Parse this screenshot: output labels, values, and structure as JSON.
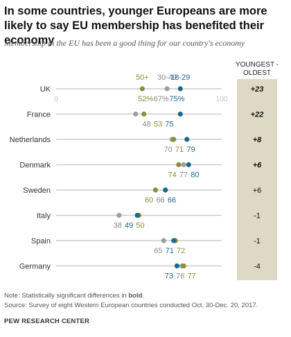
{
  "chart_data": {
    "type": "dot-plot",
    "title": "In some countries, younger Europeans are more likely to say EU membership has benefited their economy",
    "subtitle": "Membership in the EU has been a good thing for our country's economy",
    "xlim": [
      0,
      100
    ],
    "axis_labels": [
      "0",
      "100"
    ],
    "series": [
      {
        "name": "18-29",
        "color": "#1b6a8a",
        "values": [
          75,
          75,
          79,
          80,
          66,
          49,
          71,
          73
        ]
      },
      {
        "name": "30-49",
        "color": "#9e9e9e",
        "values": [
          67,
          48,
          70,
          77,
          66,
          38,
          65,
          76
        ]
      },
      {
        "name": "50+",
        "color": "#8c8c35",
        "values": [
          52,
          53,
          71,
          74,
          60,
          50,
          72,
          77
        ]
      }
    ],
    "rows": [
      {
        "country": "UK",
        "value_labels": [
          "52%",
          "67%",
          "75%"
        ],
        "diff": "+23",
        "diff_bold": true
      },
      {
        "country": "France",
        "value_labels": [
          "48",
          "53",
          "75"
        ],
        "diff": "+22",
        "diff_bold": true
      },
      {
        "country": "Netherlands",
        "value_labels": [
          "70",
          "71",
          "79"
        ],
        "diff": "+8",
        "diff_bold": true
      },
      {
        "country": "Denmark",
        "value_labels": [
          "74",
          "77",
          "80"
        ],
        "diff": "+6",
        "diff_bold": true
      },
      {
        "country": "Sweden",
        "value_labels": [
          "60",
          "66",
          "66"
        ],
        "diff": "+6",
        "diff_bold": false
      },
      {
        "country": "Italy",
        "value_labels": [
          "38",
          "49",
          "50"
        ],
        "diff": "-1",
        "diff_bold": false
      },
      {
        "country": "Spain",
        "value_labels": [
          "65",
          "71",
          "72"
        ],
        "diff": "-1",
        "diff_bold": false
      },
      {
        "country": "Germany",
        "value_labels": [
          "73",
          "76",
          "77"
        ],
        "diff": "-4",
        "diff_bold": false
      }
    ],
    "diff_header": [
      "YOUNGEST -",
      "OLDEST"
    ]
  },
  "footer": {
    "note_prefix": "Note: Statistically significant differences in ",
    "note_bold": "bold",
    "note_suffix": ".",
    "source": "Source: Survey of eight Western European countries conducted Oct. 30-Dec. 20, 2017.",
    "org": "PEW RESEARCH CENTER"
  }
}
